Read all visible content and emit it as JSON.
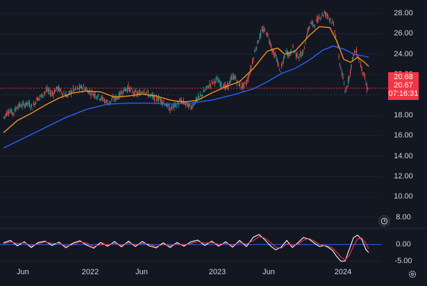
{
  "chart_data": [
    {
      "type": "line",
      "subtype": "candlestick-with-moving-averages",
      "x_ticks": [
        "Jun",
        "2022",
        "Jun",
        "2023",
        "Jun",
        "2024"
      ],
      "y_ticks": [
        "28.00",
        "26.00",
        "24.00",
        "22.00",
        "20.00",
        "18.00",
        "16.00",
        "14.00",
        "12.00",
        "10.00",
        "8.00"
      ],
      "ylim": [
        7.2,
        28.9
      ],
      "x_range": [
        "2021-05",
        "2024-03"
      ],
      "last_price": "20.68",
      "last_price_line": "20.67",
      "countdown": "07:16:31",
      "series": [
        {
          "kind": "price",
          "points": [
            [
              0,
              17.8
            ],
            [
              8,
              18.5
            ],
            [
              14,
              18.2
            ],
            [
              20,
              18.9
            ],
            [
              28,
              19.0
            ],
            [
              35,
              19.2
            ],
            [
              42,
              18.8
            ],
            [
              48,
              19.6
            ],
            [
              55,
              19.9
            ],
            [
              62,
              20.5
            ],
            [
              70,
              20.1
            ],
            [
              78,
              20.7
            ],
            [
              85,
              20.2
            ],
            [
              92,
              19.9
            ],
            [
              100,
              20.5
            ],
            [
              108,
              20.6
            ],
            [
              115,
              20.8
            ],
            [
              122,
              20.4
            ],
            [
              130,
              20.1
            ],
            [
              138,
              19.8
            ],
            [
              145,
              19.5
            ],
            [
              152,
              19.2
            ],
            [
              158,
              19.6
            ],
            [
              165,
              19.8
            ],
            [
              172,
              20.4
            ],
            [
              180,
              20.7
            ],
            [
              188,
              20.2
            ],
            [
              195,
              20.1
            ],
            [
              202,
              20.5
            ],
            [
              210,
              20.0
            ],
            [
              218,
              19.7
            ],
            [
              225,
              19.6
            ],
            [
              232,
              19.2
            ],
            [
              240,
              18.6
            ],
            [
              248,
              19.0
            ],
            [
              256,
              19.4
            ],
            [
              263,
              19.1
            ],
            [
              270,
              18.8
            ],
            [
              278,
              19.5
            ],
            [
              285,
              20.0
            ],
            [
              292,
              20.6
            ],
            [
              300,
              21.2
            ],
            [
              307,
              21.5
            ],
            [
              314,
              21.0
            ],
            [
              322,
              20.7
            ],
            [
              328,
              21.6
            ],
            [
              333,
              21.8
            ],
            [
              338,
              21.1
            ],
            [
              344,
              20.8
            ],
            [
              350,
              21.2
            ],
            [
              356,
              22.5
            ],
            [
              362,
              24.3
            ],
            [
              368,
              25.5
            ],
            [
              373,
              26.4
            ],
            [
              378,
              26.2
            ],
            [
              383,
              25.4
            ],
            [
              388,
              24.2
            ],
            [
              394,
              23.5
            ],
            [
              398,
              22.3
            ],
            [
              402,
              23.0
            ],
            [
              407,
              24.3
            ],
            [
              412,
              23.9
            ],
            [
              417,
              24.6
            ],
            [
              422,
              23.9
            ],
            [
              427,
              23.8
            ],
            [
              432,
              24.2
            ],
            [
              437,
              25.9
            ],
            [
              442,
              27.0
            ],
            [
              447,
              26.9
            ],
            [
              452,
              27.3
            ],
            [
              457,
              27.8
            ],
            [
              462,
              28.0
            ],
            [
              467,
              27.8
            ],
            [
              472,
              27.3
            ],
            [
              476,
              26.7
            ],
            [
              480,
              25.3
            ],
            [
              484,
              23.2
            ],
            [
              488,
              22.0
            ],
            [
              492,
              20.3
            ],
            [
              496,
              21.2
            ],
            [
              500,
              22.5
            ],
            [
              504,
              24.0
            ],
            [
              508,
              24.3
            ],
            [
              512,
              23.5
            ],
            [
              516,
              22.6
            ],
            [
              520,
              21.8
            ],
            [
              523,
              20.7
            ],
            [
              526,
              20.68
            ]
          ]
        },
        {
          "kind": "ma-short",
          "color": "#f7931a",
          "points": [
            [
              0,
              16.3
            ],
            [
              20,
              17.5
            ],
            [
              40,
              18.2
            ],
            [
              60,
              19.0
            ],
            [
              80,
              19.7
            ],
            [
              100,
              20.2
            ],
            [
              120,
              20.4
            ],
            [
              140,
              20.3
            ],
            [
              160,
              19.8
            ],
            [
              180,
              19.9
            ],
            [
              200,
              20.1
            ],
            [
              220,
              19.9
            ],
            [
              240,
              19.5
            ],
            [
              260,
              19.3
            ],
            [
              280,
              19.5
            ],
            [
              300,
              20.2
            ],
            [
              320,
              20.8
            ],
            [
              340,
              21.3
            ],
            [
              360,
              22.6
            ],
            [
              380,
              24.3
            ],
            [
              395,
              24.6
            ],
            [
              405,
              24.0
            ],
            [
              420,
              24.3
            ],
            [
              440,
              25.8
            ],
            [
              455,
              26.7
            ],
            [
              470,
              26.6
            ],
            [
              480,
              25.3
            ],
            [
              490,
              23.5
            ],
            [
              500,
              23.2
            ],
            [
              510,
              23.7
            ],
            [
              520,
              23.2
            ],
            [
              526,
              22.8
            ]
          ]
        },
        {
          "kind": "ma-long",
          "color": "#2962ff",
          "points": [
            [
              0,
              14.8
            ],
            [
              30,
              15.8
            ],
            [
              60,
              16.8
            ],
            [
              90,
              17.8
            ],
            [
              120,
              18.6
            ],
            [
              150,
              19.1
            ],
            [
              180,
              19.2
            ],
            [
              210,
              19.2
            ],
            [
              240,
              19.1
            ],
            [
              270,
              19.2
            ],
            [
              300,
              19.5
            ],
            [
              330,
              20.0
            ],
            [
              360,
              20.6
            ],
            [
              380,
              21.3
            ],
            [
              400,
              22.1
            ],
            [
              420,
              22.6
            ],
            [
              440,
              23.4
            ],
            [
              460,
              24.4
            ],
            [
              475,
              24.8
            ],
            [
              490,
              24.5
            ],
            [
              505,
              24.0
            ],
            [
              520,
              23.8
            ],
            [
              526,
              23.7
            ]
          ]
        }
      ]
    },
    {
      "type": "line",
      "subtype": "oscillator",
      "y_ticks": [
        "0.00",
        "-5.00"
      ],
      "ylim": [
        -6.2,
        4.2
      ],
      "series": [
        {
          "kind": "oscillator-main",
          "color": "#ffffff",
          "points": [
            [
              0,
              0.5
            ],
            [
              10,
              1.2
            ],
            [
              20,
              -0.4
            ],
            [
              30,
              0.8
            ],
            [
              40,
              -0.9
            ],
            [
              50,
              0.6
            ],
            [
              60,
              1.0
            ],
            [
              70,
              -0.3
            ],
            [
              80,
              0.7
            ],
            [
              90,
              -1.0
            ],
            [
              100,
              0.4
            ],
            [
              110,
              1.1
            ],
            [
              120,
              -0.2
            ],
            [
              130,
              -1.1
            ],
            [
              140,
              0.6
            ],
            [
              150,
              -0.5
            ],
            [
              160,
              0.9
            ],
            [
              170,
              -0.7
            ],
            [
              180,
              1.0
            ],
            [
              190,
              -0.6
            ],
            [
              200,
              0.9
            ],
            [
              210,
              -0.4
            ],
            [
              220,
              -1.0
            ],
            [
              230,
              0.5
            ],
            [
              240,
              -0.9
            ],
            [
              250,
              0.6
            ],
            [
              260,
              -0.5
            ],
            [
              270,
              0.8
            ],
            [
              280,
              1.3
            ],
            [
              290,
              -0.3
            ],
            [
              300,
              1.0
            ],
            [
              310,
              -0.5
            ],
            [
              320,
              0.8
            ],
            [
              330,
              -0.8
            ],
            [
              340,
              1.2
            ],
            [
              350,
              -0.6
            ],
            [
              360,
              2.2
            ],
            [
              368,
              3.0
            ],
            [
              376,
              1.5
            ],
            [
              385,
              -0.5
            ],
            [
              392,
              -1.6
            ],
            [
              400,
              -0.8
            ],
            [
              408,
              1.2
            ],
            [
              416,
              -0.9
            ],
            [
              424,
              0.5
            ],
            [
              432,
              2.1
            ],
            [
              440,
              1.6
            ],
            [
              448,
              0.4
            ],
            [
              455,
              -0.6
            ],
            [
              462,
              -0.3
            ],
            [
              468,
              -0.9
            ],
            [
              474,
              -1.8
            ],
            [
              480,
              -3.6
            ],
            [
              486,
              -5.0
            ],
            [
              492,
              -5.0
            ],
            [
              498,
              -1.5
            ],
            [
              504,
              2.0
            ],
            [
              510,
              2.8
            ],
            [
              516,
              1.5
            ],
            [
              522,
              -1.5
            ],
            [
              526,
              -2.4
            ]
          ]
        },
        {
          "kind": "oscillator-signal",
          "color": "#f23645",
          "points": [
            [
              0,
              0.2
            ],
            [
              10,
              0.8
            ],
            [
              20,
              0.3
            ],
            [
              30,
              0.5
            ],
            [
              40,
              -0.4
            ],
            [
              50,
              0.2
            ],
            [
              60,
              0.8
            ],
            [
              70,
              0.3
            ],
            [
              80,
              0.4
            ],
            [
              90,
              -0.5
            ],
            [
              100,
              -0.1
            ],
            [
              110,
              0.8
            ],
            [
              120,
              0.4
            ],
            [
              130,
              -0.6
            ],
            [
              140,
              0.0
            ],
            [
              150,
              -0.1
            ],
            [
              160,
              0.4
            ],
            [
              170,
              -0.2
            ],
            [
              180,
              0.5
            ],
            [
              190,
              -0.1
            ],
            [
              200,
              0.4
            ],
            [
              210,
              0.1
            ],
            [
              220,
              -0.6
            ],
            [
              230,
              0.0
            ],
            [
              240,
              -0.4
            ],
            [
              250,
              0.2
            ],
            [
              260,
              -0.1
            ],
            [
              270,
              0.3
            ],
            [
              280,
              0.9
            ],
            [
              290,
              0.4
            ],
            [
              300,
              0.6
            ],
            [
              310,
              0.0
            ],
            [
              320,
              0.4
            ],
            [
              330,
              -0.2
            ],
            [
              340,
              0.6
            ],
            [
              350,
              0.1
            ],
            [
              360,
              1.2
            ],
            [
              368,
              2.3
            ],
            [
              376,
              2.0
            ],
            [
              385,
              0.6
            ],
            [
              392,
              -0.8
            ],
            [
              400,
              -1.1
            ],
            [
              408,
              0.2
            ],
            [
              416,
              -0.2
            ],
            [
              424,
              0.0
            ],
            [
              432,
              1.3
            ],
            [
              440,
              1.8
            ],
            [
              448,
              1.0
            ],
            [
              455,
              0.0
            ],
            [
              462,
              -0.3
            ],
            [
              468,
              -0.5
            ],
            [
              474,
              -1.1
            ],
            [
              480,
              -2.3
            ],
            [
              486,
              -3.8
            ],
            [
              492,
              -4.6
            ],
            [
              498,
              -3.3
            ],
            [
              504,
              -0.5
            ],
            [
              510,
              1.6
            ],
            [
              516,
              2.0
            ],
            [
              522,
              0.3
            ],
            [
              526,
              -1.3
            ]
          ]
        }
      ]
    }
  ],
  "colors": {
    "background": "#131722",
    "grid": "#1f2330",
    "up": "#26a69a",
    "down": "#ef5350",
    "badge": "#f23645",
    "text": "#d1d4dc"
  },
  "icons": {
    "clock": "clock-icon",
    "settings": "gear-icon"
  }
}
